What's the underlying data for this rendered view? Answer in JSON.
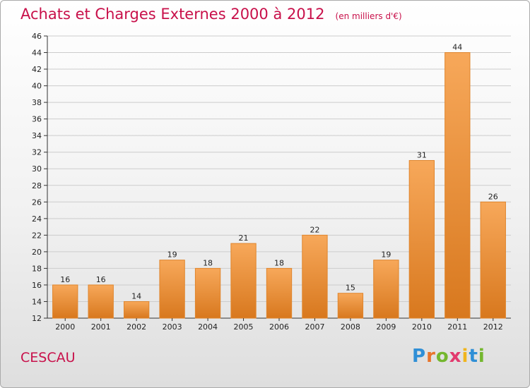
{
  "title": "Achats et Charges Externes 2000 à 2012",
  "unit_note": "(en milliers d'€)",
  "commune": "CESCAU",
  "logo": {
    "text": "Proxiti",
    "letter_colors": [
      "#2f8fd6",
      "#e8742a",
      "#74b72e",
      "#e23a6e",
      "#f0b51d",
      "#2f8fd6",
      "#74b72e"
    ]
  },
  "colors": {
    "bar_top": "#f7a85a",
    "bar_bottom": "#d8781e",
    "bar_edge": "#e0852c",
    "grid": "#cccccc",
    "axis": "#333333",
    "text": "#222222",
    "accent": "#c8104a"
  },
  "chart_data": {
    "type": "bar",
    "categories": [
      "2000",
      "2001",
      "2002",
      "2003",
      "2004",
      "2005",
      "2006",
      "2007",
      "2008",
      "2009",
      "2010",
      "2011",
      "2012"
    ],
    "values": [
      16,
      16,
      14,
      19,
      18,
      21,
      18,
      22,
      15,
      19,
      31,
      44,
      26
    ],
    "title": "Achats et Charges Externes 2000 à 2012",
    "xlabel": "",
    "ylabel": "",
    "ylim": [
      12,
      46
    ],
    "yticks": [
      12,
      14,
      16,
      18,
      20,
      22,
      24,
      26,
      28,
      30,
      32,
      34,
      36,
      38,
      40,
      42,
      44,
      46
    ],
    "grid": true,
    "data_labels": true
  }
}
